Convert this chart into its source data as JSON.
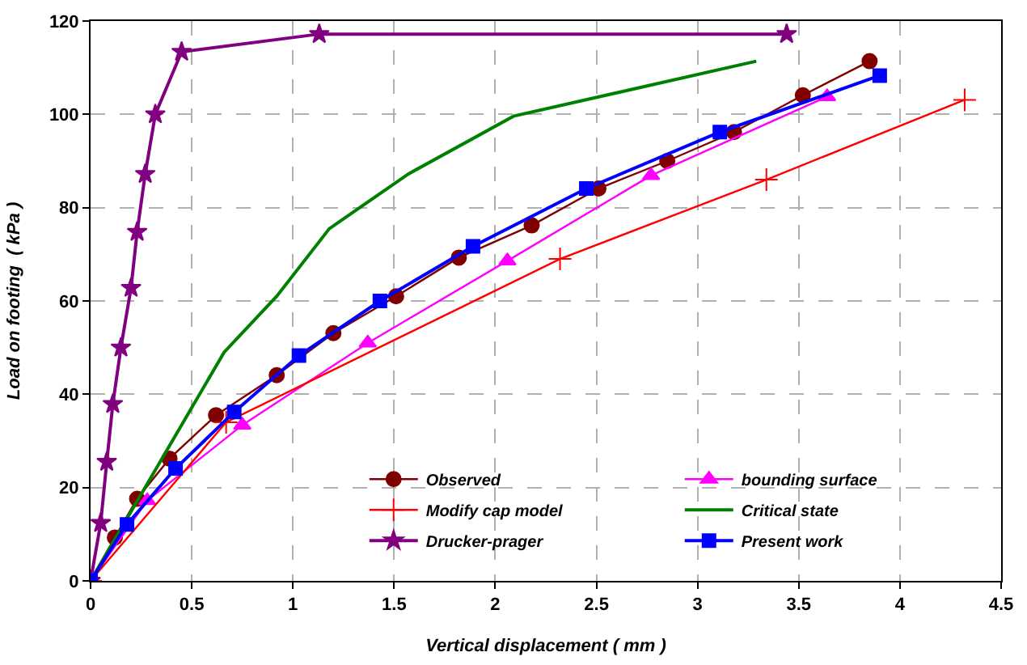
{
  "chart_data": {
    "type": "line",
    "xlabel": "Vertical displacement ( mm )",
    "ylabel": "Load on footing  ( kPa )",
    "xlim": [
      0,
      4.5
    ],
    "ylim": [
      0,
      120
    ],
    "xticks": [
      0,
      0.5,
      1,
      1.5,
      2,
      2.5,
      3,
      3.5,
      4,
      4.5
    ],
    "yticks": [
      0,
      20,
      40,
      60,
      80,
      100,
      120
    ],
    "grid": true,
    "legend": "bottom right",
    "series": [
      {
        "name": "Observed",
        "color": "#800000",
        "marker": "circle",
        "x": [
          0,
          0.12,
          0.23,
          0.39,
          0.62,
          0.92,
          1.2,
          1.51,
          1.82,
          2.18,
          2.51,
          2.85,
          3.18,
          3.52,
          3.85
        ],
        "values": [
          0,
          9.3,
          17.6,
          26.2,
          35.5,
          44.1,
          53.1,
          61,
          69.3,
          76.2,
          84.1,
          90,
          96.2,
          104.1,
          111.4
        ]
      },
      {
        "name": "bounding surface",
        "color": "#ff00ff",
        "marker": "triangle",
        "x": [
          0,
          0.28,
          0.75,
          1.37,
          2.06,
          2.77,
          3.64
        ],
        "values": [
          0,
          17.2,
          33.4,
          51,
          68.6,
          86.9,
          103.8
        ]
      },
      {
        "name": "Modify cap model",
        "color": "#ff0000",
        "marker": "cross",
        "x": [
          0,
          0.67,
          2.32,
          3.34,
          4.32
        ],
        "values": [
          0,
          34,
          69,
          86,
          103.1
        ]
      },
      {
        "name": "Critical state",
        "color": "#008000",
        "marker": "none",
        "x": [
          0,
          0.66,
          0.92,
          1.18,
          1.57,
          2.09,
          3.29
        ],
        "values": [
          0,
          49,
          61,
          75.5,
          87.2,
          99.6,
          111.4
        ]
      },
      {
        "name": "Drucker-prager",
        "color": "#800080",
        "marker": "star",
        "x": [
          0,
          0.05,
          0.08,
          0.11,
          0.15,
          0.2,
          0.23,
          0.27,
          0.32,
          0.45,
          1.13,
          3.44
        ],
        "values": [
          0,
          12.4,
          25.5,
          37.9,
          50,
          62.8,
          74.8,
          87.2,
          100,
          113.4,
          117.2,
          117.2
        ]
      },
      {
        "name": "Present work",
        "color": "#0000ff",
        "marker": "square",
        "x": [
          0,
          0.18,
          0.42,
          0.71,
          1.03,
          1.43,
          1.89,
          2.45,
          3.11,
          3.9
        ],
        "values": [
          0,
          12.1,
          24.1,
          36.2,
          48.3,
          60,
          71.7,
          84.1,
          96.2,
          108.3
        ]
      }
    ]
  }
}
